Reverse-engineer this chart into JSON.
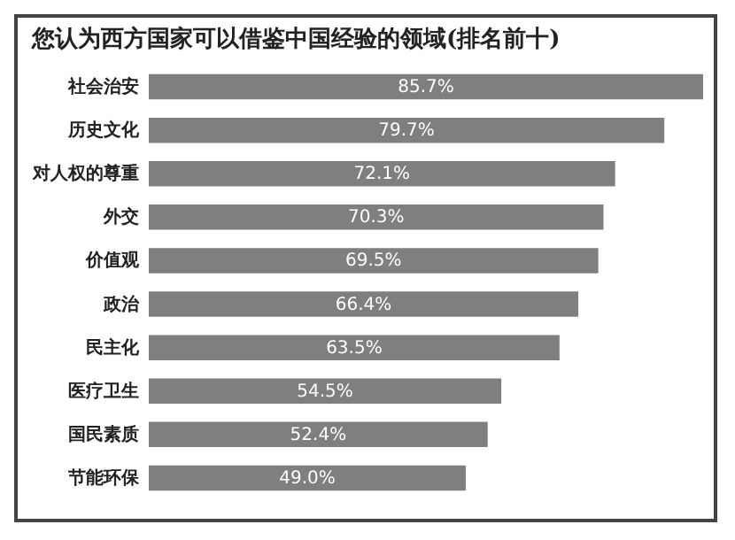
{
  "chart_data": {
    "type": "bar",
    "orientation": "horizontal",
    "title": "您认为西方国家可以借鉴中国经验的领域(排名前十)",
    "categories": [
      "社会治安",
      "历史文化",
      "对人权的尊重",
      "外交",
      "价值观",
      "政治",
      "民主化",
      "医疗卫生",
      "国民素质",
      "节能环保"
    ],
    "values": [
      85.7,
      79.7,
      72.1,
      70.3,
      69.5,
      66.4,
      63.5,
      54.5,
      52.4,
      49.0
    ],
    "value_labels": [
      "85.7%",
      "79.7%",
      "72.1%",
      "70.3%",
      "69.5%",
      "66.4%",
      "63.5%",
      "54.5%",
      "52.4%",
      "49.0%"
    ],
    "color": "#7f7f7f"
  }
}
